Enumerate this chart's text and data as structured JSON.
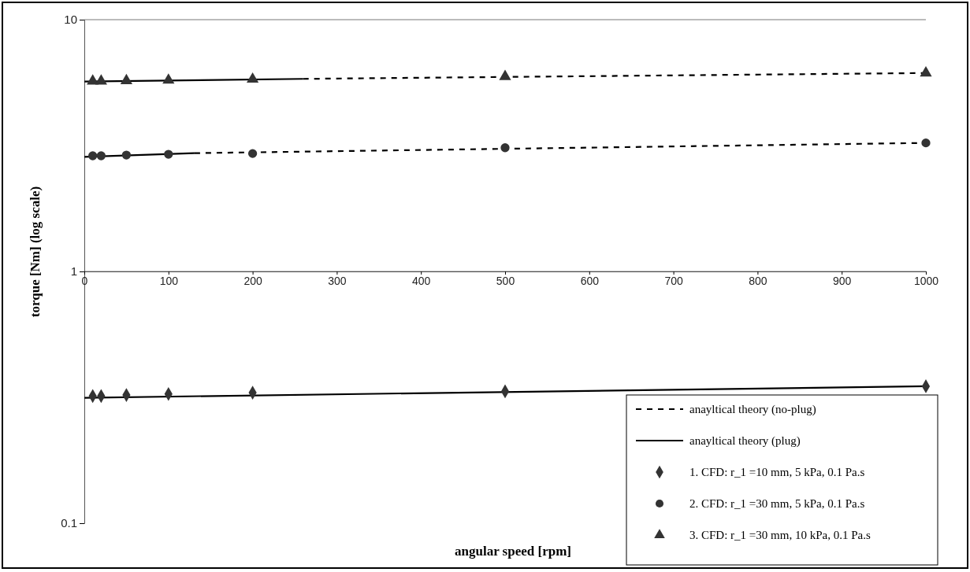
{
  "chart_data": {
    "type": "line",
    "xlabel": "angular speed [rpm]",
    "ylabel": "torque [Nm] (log scale)",
    "log": "y",
    "grid": "y",
    "legend": "bottom right",
    "xlim": [
      0,
      1000
    ],
    "xticks": [
      0,
      100,
      200,
      300,
      400,
      500,
      600,
      700,
      800,
      900,
      1000
    ],
    "ylim": [
      0.1,
      10
    ],
    "yticks": [
      0.1,
      1,
      10
    ],
    "series": [
      {
        "name": "anayltical theory (no-plug)",
        "line_style": "dashed",
        "marker": "none",
        "color": "#000000",
        "x": [
          131,
          1000
        ],
        "values": [
          2.95,
          3.24
        ]
      },
      {
        "line_style": "dashed",
        "marker": "none",
        "color": "#000000",
        "x": [
          260,
          1000
        ],
        "values": [
          5.82,
          6.14
        ]
      },
      {
        "name": "anayltical theory (plug)",
        "line_style": "solid",
        "marker": "none",
        "color": "#000000",
        "x": [
          0,
          1000
        ],
        "values": [
          0.315,
          0.35
        ]
      },
      {
        "line_style": "solid",
        "marker": "none",
        "color": "#000000",
        "x": [
          0,
          131
        ],
        "values": [
          2.85,
          2.95
        ]
      },
      {
        "line_style": "solid",
        "marker": "none",
        "color": "#000000",
        "x": [
          0,
          260
        ],
        "values": [
          5.68,
          5.82
        ]
      },
      {
        "name": "1. CFD: r_1 =10 mm, 5 kPa, 0.1 Pa.s",
        "type": "scatter",
        "marker": "diamond",
        "color": "#333333",
        "x": [
          10,
          20,
          50,
          100,
          200,
          500,
          1000
        ],
        "values": [
          0.32,
          0.32,
          0.323,
          0.326,
          0.33,
          0.334,
          0.35
        ]
      },
      {
        "name": "2. CFD: r_1 =30 mm, 5 kPa, 0.1 Pa.s",
        "type": "scatter",
        "marker": "circle",
        "color": "#333333",
        "x": [
          10,
          20,
          50,
          100,
          200,
          500,
          1000
        ],
        "values": [
          2.88,
          2.88,
          2.9,
          2.92,
          2.94,
          3.1,
          3.24
        ]
      },
      {
        "name": "3. CFD: r_1 =30 mm, 10 kPa, 0.1 Pa.s",
        "type": "scatter",
        "marker": "triangle",
        "color": "#333333",
        "x": [
          10,
          20,
          50,
          100,
          200,
          500,
          1000
        ],
        "values": [
          5.7,
          5.7,
          5.72,
          5.75,
          5.8,
          5.94,
          6.14
        ]
      }
    ]
  }
}
